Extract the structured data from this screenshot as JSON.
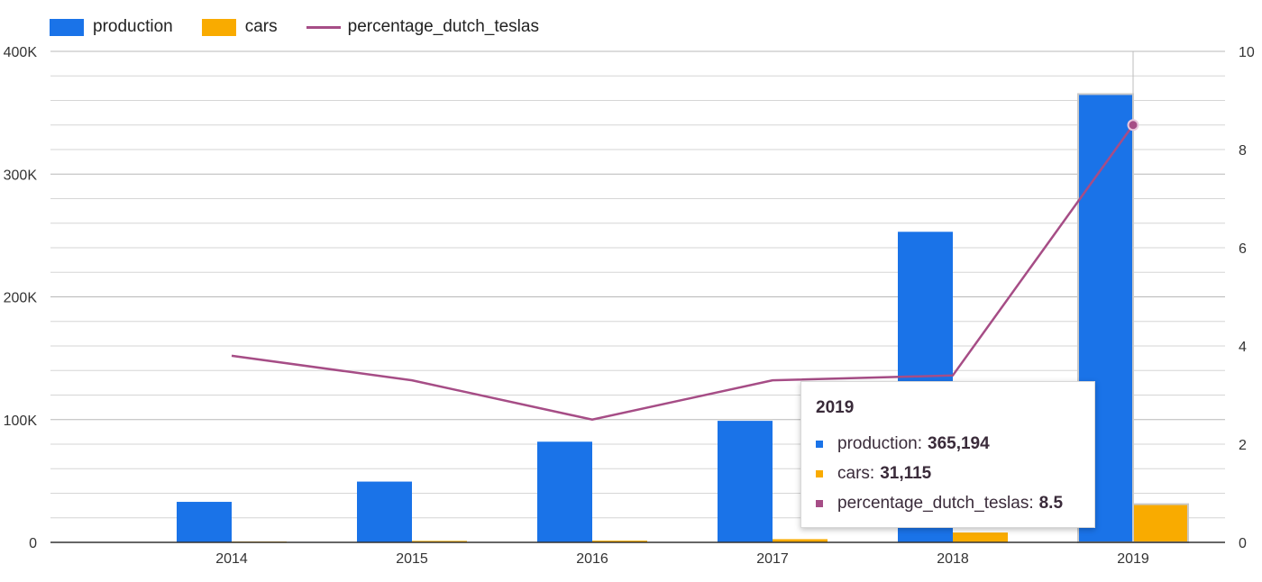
{
  "legend": [
    {
      "name": "production",
      "color": "#1a73e8",
      "kind": "bar"
    },
    {
      "name": "cars",
      "color": "#f9ab00",
      "kind": "bar"
    },
    {
      "name": "percentage_dutch_teslas",
      "color": "#a64d86",
      "kind": "line"
    }
  ],
  "chart_data": {
    "type": "bar",
    "categories": [
      "2014",
      "2015",
      "2016",
      "2017",
      "2018",
      "2019"
    ],
    "series": [
      {
        "name": "production",
        "axis": "left",
        "color": "#1a73e8",
        "values": [
          33000,
          49500,
          82000,
          99000,
          253000,
          365194
        ]
      },
      {
        "name": "cars",
        "axis": "left",
        "color": "#f9ab00",
        "values": [
          700,
          1200,
          1400,
          2600,
          8000,
          31115
        ]
      },
      {
        "name": "percentage_dutch_teslas",
        "type": "line",
        "axis": "right",
        "color": "#a64d86",
        "values": [
          3.8,
          3.3,
          2.5,
          3.3,
          3.4,
          8.5
        ]
      }
    ],
    "y_left": {
      "ticks": [
        0,
        100000,
        200000,
        300000,
        400000
      ],
      "tick_labels": [
        "0",
        "100K",
        "200K",
        "300K",
        "400K"
      ],
      "lim": [
        0,
        400000
      ]
    },
    "y_right": {
      "ticks": [
        0,
        2,
        4,
        6,
        8,
        10
      ],
      "tick_labels": [
        "0",
        "2",
        "4",
        "6",
        "8",
        "10"
      ],
      "lim": [
        0,
        10
      ]
    },
    "grid": true,
    "legend_position": "top-left"
  },
  "tooltip": {
    "title": "2019",
    "rows": [
      {
        "label": "production:",
        "value": "365,194",
        "color": "#1a73e8"
      },
      {
        "label": "cars:",
        "value": "31,115",
        "color": "#f9ab00"
      },
      {
        "label": "percentage_dutch_teslas:",
        "value": "8.5",
        "color": "#a64d86"
      }
    ]
  }
}
